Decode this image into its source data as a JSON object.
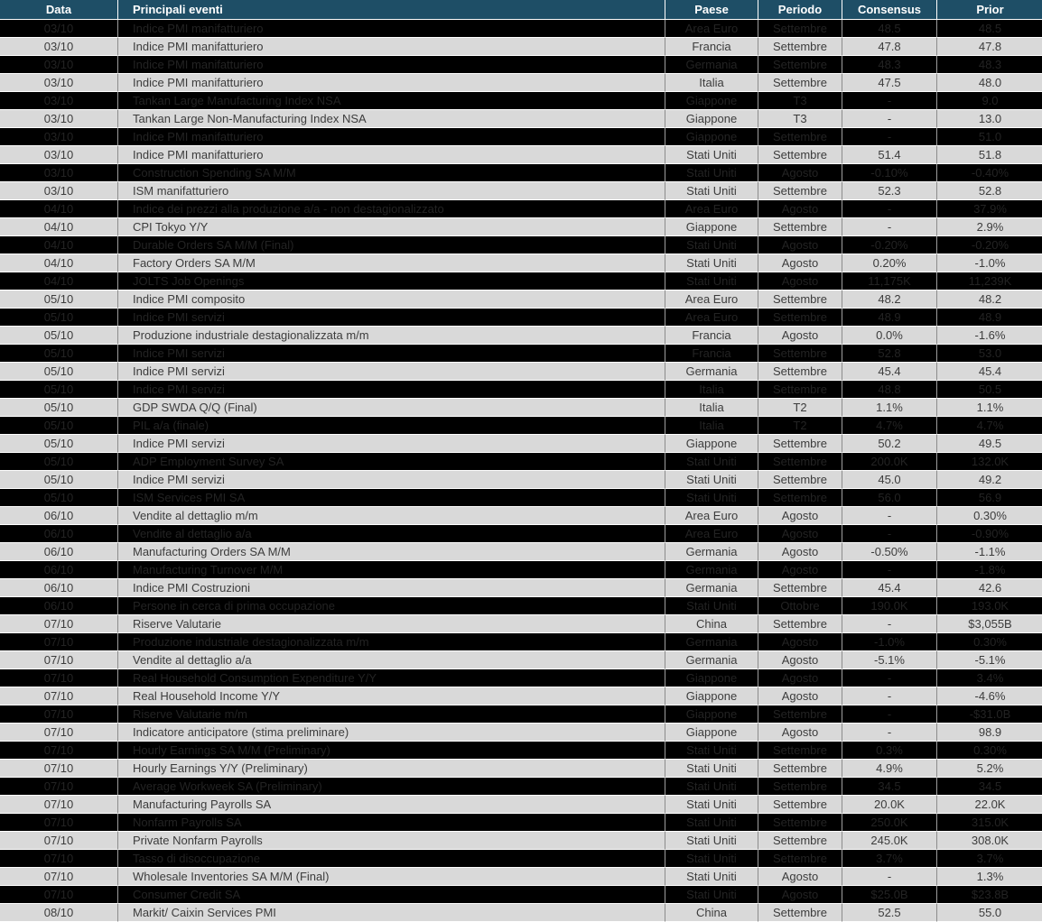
{
  "colors": {
    "header_bg": "#1E4E66",
    "header_text": "#FFFFFF",
    "row_light_bg": "#D9D9D9",
    "row_light_text": "#3C3C3C",
    "row_dark_bg": "#000000",
    "row_dark_text": "#232323",
    "grid_line": "#8C8C8C",
    "row_separator": "#FFFFFF"
  },
  "table": {
    "columns": [
      {
        "key": "date",
        "label": "Data"
      },
      {
        "key": "event",
        "label": "Principali eventi"
      },
      {
        "key": "country",
        "label": "Paese"
      },
      {
        "key": "period",
        "label": "Periodo"
      },
      {
        "key": "consensus",
        "label": "Consensus"
      },
      {
        "key": "prior",
        "label": "Prior"
      }
    ],
    "rows": [
      {
        "date": "03/10",
        "event": "Indice PMI manifatturiero",
        "country": "Area Euro",
        "period": "Settembre",
        "consensus": "48.5",
        "prior": "48.5",
        "shade": "dark"
      },
      {
        "date": "03/10",
        "event": "Indice PMI manifatturiero",
        "country": "Francia",
        "period": "Settembre",
        "consensus": "47.8",
        "prior": "47.8",
        "shade": "light"
      },
      {
        "date": "03/10",
        "event": "Indice PMI manifatturiero",
        "country": "Germania",
        "period": "Settembre",
        "consensus": "48.3",
        "prior": "48.3",
        "shade": "dark"
      },
      {
        "date": "03/10",
        "event": "Indice PMI manifatturiero",
        "country": "Italia",
        "period": "Settembre",
        "consensus": "47.5",
        "prior": "48.0",
        "shade": "light"
      },
      {
        "date": "03/10",
        "event": "Tankan Large Manufacturing Index NSA",
        "country": "Giappone",
        "period": "T3",
        "consensus": "-",
        "prior": "9.0",
        "shade": "dark"
      },
      {
        "date": "03/10",
        "event": "Tankan Large Non-Manufacturing Index NSA",
        "country": "Giappone",
        "period": "T3",
        "consensus": "-",
        "prior": "13.0",
        "shade": "light"
      },
      {
        "date": "03/10",
        "event": "Indice PMI manifatturiero",
        "country": "Giappone",
        "period": "Settembre",
        "consensus": "-",
        "prior": "51.0",
        "shade": "dark"
      },
      {
        "date": "03/10",
        "event": "Indice PMI manifatturiero",
        "country": "Stati Uniti",
        "period": "Settembre",
        "consensus": "51.4",
        "prior": "51.8",
        "shade": "light"
      },
      {
        "date": "03/10",
        "event": "Construction Spending SA M/M",
        "country": "Stati Uniti",
        "period": "Agosto",
        "consensus": "-0.10%",
        "prior": "-0.40%",
        "shade": "dark"
      },
      {
        "date": "03/10",
        "event": "ISM manifatturiero",
        "country": "Stati Uniti",
        "period": "Settembre",
        "consensus": "52.3",
        "prior": "52.8",
        "shade": "light"
      },
      {
        "date": "04/10",
        "event": "Indice dei prezzi alla produzione a/a - non destagionalizzato",
        "country": "Area Euro",
        "period": "Agosto",
        "consensus": "-",
        "prior": "37.9%",
        "shade": "dark"
      },
      {
        "date": "04/10",
        "event": "CPI Tokyo Y/Y",
        "country": "Giappone",
        "period": "Settembre",
        "consensus": "-",
        "prior": "2.9%",
        "shade": "light"
      },
      {
        "date": "04/10",
        "event": "Durable Orders SA M/M (Final)",
        "country": "Stati Uniti",
        "period": "Agosto",
        "consensus": "-0.20%",
        "prior": "-0.20%",
        "shade": "dark"
      },
      {
        "date": "04/10",
        "event": "Factory Orders SA M/M",
        "country": "Stati Uniti",
        "period": "Agosto",
        "consensus": "0.20%",
        "prior": "-1.0%",
        "shade": "light"
      },
      {
        "date": "04/10",
        "event": "JOLTS Job Openings",
        "country": "Stati Uniti",
        "period": "Agosto",
        "consensus": "11,175K",
        "prior": "11,239K",
        "shade": "dark"
      },
      {
        "date": "05/10",
        "event": "Indice PMI composito",
        "country": "Area Euro",
        "period": "Settembre",
        "consensus": "48.2",
        "prior": "48.2",
        "shade": "light"
      },
      {
        "date": "05/10",
        "event": "Indice PMI servizi",
        "country": "Area Euro",
        "period": "Settembre",
        "consensus": "48.9",
        "prior": "48.9",
        "shade": "dark"
      },
      {
        "date": "05/10",
        "event": "Produzione industriale destagionalizzata m/m",
        "country": "Francia",
        "period": "Agosto",
        "consensus": "0.0%",
        "prior": "-1.6%",
        "shade": "light"
      },
      {
        "date": "05/10",
        "event": "Indice PMI servizi",
        "country": "Francia",
        "period": "Settembre",
        "consensus": "52.8",
        "prior": "53.0",
        "shade": "dark"
      },
      {
        "date": "05/10",
        "event": "Indice PMI servizi",
        "country": "Germania",
        "period": "Settembre",
        "consensus": "45.4",
        "prior": "45.4",
        "shade": "light"
      },
      {
        "date": "05/10",
        "event": "Indice PMI servizi",
        "country": "Italia",
        "period": "Settembre",
        "consensus": "48.8",
        "prior": "50.5",
        "shade": "dark"
      },
      {
        "date": "05/10",
        "event": "GDP SWDA Q/Q (Final)",
        "country": "Italia",
        "period": "T2",
        "consensus": "1.1%",
        "prior": "1.1%",
        "shade": "light"
      },
      {
        "date": "05/10",
        "event": "PIL a/a (finale)",
        "country": "Italia",
        "period": "T2",
        "consensus": "4.7%",
        "prior": "4.7%",
        "shade": "dark"
      },
      {
        "date": "05/10",
        "event": "Indice PMI servizi",
        "country": "Giappone",
        "period": "Settembre",
        "consensus": "50.2",
        "prior": "49.5",
        "shade": "light"
      },
      {
        "date": "05/10",
        "event": "ADP Employment Survey SA",
        "country": "Stati Uniti",
        "period": "Settembre",
        "consensus": "200.0K",
        "prior": "132.0K",
        "shade": "dark"
      },
      {
        "date": "05/10",
        "event": "Indice PMI servizi",
        "country": "Stati Uniti",
        "period": "Settembre",
        "consensus": "45.0",
        "prior": "49.2",
        "shade": "light"
      },
      {
        "date": "05/10",
        "event": "ISM Services PMI SA",
        "country": "Stati Uniti",
        "period": "Settembre",
        "consensus": "56.0",
        "prior": "56.9",
        "shade": "dark"
      },
      {
        "date": "06/10",
        "event": "Vendite al dettaglio m/m",
        "country": "Area Euro",
        "period": "Agosto",
        "consensus": "-",
        "prior": "0.30%",
        "shade": "light"
      },
      {
        "date": "06/10",
        "event": "Vendite al dettaglio a/a",
        "country": "Area Euro",
        "period": "Agosto",
        "consensus": "-",
        "prior": "-0.90%",
        "shade": "dark"
      },
      {
        "date": "06/10",
        "event": "Manufacturing Orders SA M/M",
        "country": "Germania",
        "period": "Agosto",
        "consensus": "-0.50%",
        "prior": "-1.1%",
        "shade": "light"
      },
      {
        "date": "06/10",
        "event": "Manufacturing Turnover M/M",
        "country": "Germania",
        "period": "Agosto",
        "consensus": "-",
        "prior": "-1.8%",
        "shade": "dark"
      },
      {
        "date": "06/10",
        "event": "Indice PMI  Costruzioni",
        "country": "Germania",
        "period": "Settembre",
        "consensus": "45.4",
        "prior": "42.6",
        "shade": "light"
      },
      {
        "date": "06/10",
        "event": "Persone in cerca di prima occupazione",
        "country": "Stati Uniti",
        "period": "Ottobre",
        "consensus": "190.0K",
        "prior": "193.0K",
        "shade": "dark"
      },
      {
        "date": "07/10",
        "event": "Riserve Valutarie",
        "country": "China",
        "period": "Settembre",
        "consensus": "-",
        "prior": "$3,055B",
        "shade": "light"
      },
      {
        "date": "07/10",
        "event": "Produzione industriale destagionalizzata m/m",
        "country": "Germania",
        "period": "Agosto",
        "consensus": "-1.0%",
        "prior": "0.30%",
        "shade": "dark"
      },
      {
        "date": "07/10",
        "event": "Vendite al dettaglio a/a",
        "country": "Germania",
        "period": "Agosto",
        "consensus": "-5.1%",
        "prior": "-5.1%",
        "shade": "light"
      },
      {
        "date": "07/10",
        "event": "Real Household Consumption Expenditure Y/Y",
        "country": "Giappone",
        "period": "Agosto",
        "consensus": "-",
        "prior": "3.4%",
        "shade": "dark"
      },
      {
        "date": "07/10",
        "event": "Real Household Income Y/Y",
        "country": "Giappone",
        "period": "Agosto",
        "consensus": "-",
        "prior": "-4.6%",
        "shade": "light"
      },
      {
        "date": "07/10",
        "event": "Riserve Valutarie m/m",
        "country": "Giappone",
        "period": "Settembre",
        "consensus": "-",
        "prior": "-$31.0B",
        "shade": "dark"
      },
      {
        "date": "07/10",
        "event": "Indicatore anticipatore (stima preliminare)",
        "country": "Giappone",
        "period": "Agosto",
        "consensus": "-",
        "prior": "98.9",
        "shade": "light"
      },
      {
        "date": "07/10",
        "event": "Hourly Earnings SA M/M (Preliminary)",
        "country": "Stati Uniti",
        "period": "Settembre",
        "consensus": "0.3%",
        "prior": "0.30%",
        "shade": "dark"
      },
      {
        "date": "07/10",
        "event": "Hourly Earnings Y/Y (Preliminary)",
        "country": "Stati Uniti",
        "period": "Settembre",
        "consensus": "4.9%",
        "prior": "5.2%",
        "shade": "light"
      },
      {
        "date": "07/10",
        "event": "Average Workweek SA (Preliminary)",
        "country": "Stati Uniti",
        "period": "Settembre",
        "consensus": "34.5",
        "prior": "34.5",
        "shade": "dark"
      },
      {
        "date": "07/10",
        "event": "Manufacturing Payrolls SA",
        "country": "Stati Uniti",
        "period": "Settembre",
        "consensus": "20.0K",
        "prior": "22.0K",
        "shade": "light"
      },
      {
        "date": "07/10",
        "event": "Nonfarm Payrolls SA",
        "country": "Stati Uniti",
        "period": "Settembre",
        "consensus": "250.0K",
        "prior": "315.0K",
        "shade": "dark"
      },
      {
        "date": "07/10",
        "event": "Private Nonfarm Payrolls",
        "country": "Stati Uniti",
        "period": "Settembre",
        "consensus": "245.0K",
        "prior": "308.0K",
        "shade": "light"
      },
      {
        "date": "07/10",
        "event": "Tasso di disoccupazione",
        "country": "Stati Uniti",
        "period": "Settembre",
        "consensus": "3.7%",
        "prior": "3.7%",
        "shade": "dark"
      },
      {
        "date": "07/10",
        "event": "Wholesale Inventories SA M/M (Final)",
        "country": "Stati Uniti",
        "period": "Agosto",
        "consensus": "-",
        "prior": "1.3%",
        "shade": "light"
      },
      {
        "date": "07/10",
        "event": "Consumer Credit SA",
        "country": "Stati Uniti",
        "period": "Agosto",
        "consensus": "$25.0B",
        "prior": "$23.8B",
        "shade": "dark"
      },
      {
        "date": "08/10",
        "event": "Markit/ Caixin Services PMI",
        "country": "China",
        "period": "Settembre",
        "consensus": "52.5",
        "prior": "55.0",
        "shade": "light"
      }
    ]
  }
}
